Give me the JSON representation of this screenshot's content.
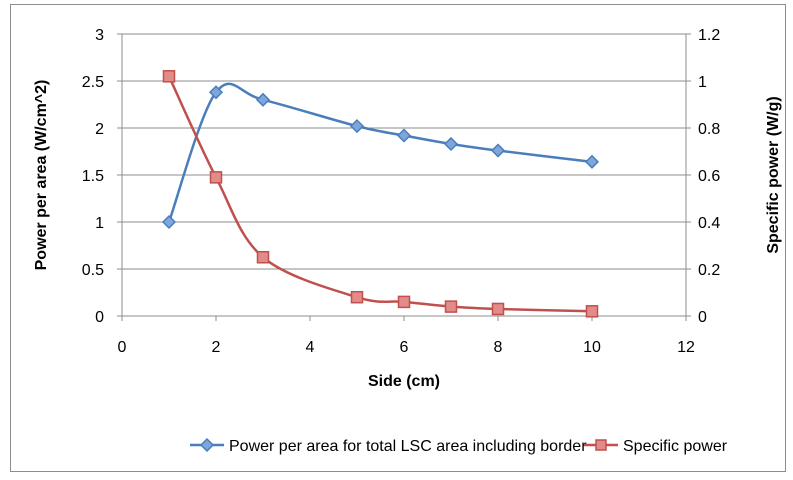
{
  "chart_data": {
    "type": "line",
    "title": "",
    "xlabel": "Side (cm)",
    "ylabel_left": "Power per area (W/cm^2)",
    "ylabel_right": "Specific power  (W/g)",
    "xlim": [
      0,
      12
    ],
    "ylim_left": [
      0,
      3
    ],
    "ylim_right": [
      0,
      1.2
    ],
    "x_ticks": [
      "0",
      "2",
      "4",
      "6",
      "8",
      "10",
      "12"
    ],
    "y_ticks_left": [
      "0",
      "0.5",
      "1",
      "1.5",
      "2",
      "2.5",
      "3"
    ],
    "y_ticks_right": [
      "0",
      "0.2",
      "0.4",
      "0.6",
      "0.8",
      "1",
      "1.2"
    ],
    "grid": "horizontal",
    "legend_position": "bottom",
    "series": [
      {
        "name": "Power per area for total LSC area including border",
        "axis": "left",
        "color": "#4a7ebb",
        "marker": "diamond",
        "x": [
          1,
          2,
          3,
          5,
          6,
          7,
          8,
          10
        ],
        "y": [
          1.0,
          2.38,
          2.3,
          2.02,
          1.92,
          1.83,
          1.76,
          1.64
        ]
      },
      {
        "name": "Specific power",
        "axis": "right",
        "color": "#c0504d",
        "marker": "square",
        "x": [
          1,
          2,
          3,
          5,
          6,
          7,
          8,
          10
        ],
        "y": [
          1.02,
          0.59,
          0.25,
          0.08,
          0.06,
          0.04,
          0.03,
          0.02
        ]
      }
    ]
  }
}
